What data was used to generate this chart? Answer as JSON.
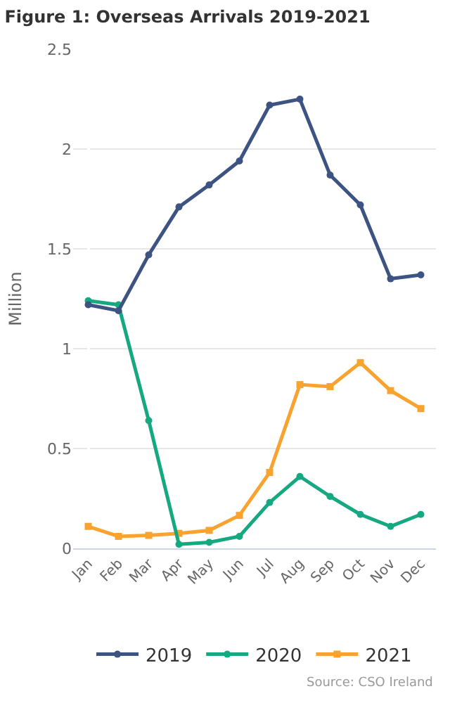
{
  "chart_data": {
    "type": "line",
    "title": "Figure 1: Overseas Arrivals 2019-2021",
    "ylabel": "Million",
    "categories": [
      "Jan",
      "Feb",
      "Mar",
      "Apr",
      "May",
      "Jun",
      "Jul",
      "Aug",
      "Sep",
      "Oct",
      "Nov",
      "Dec"
    ],
    "series": [
      {
        "name": "2019",
        "color": "#3d5382",
        "marker": "circle",
        "values": [
          1.22,
          1.19,
          1.47,
          1.71,
          1.82,
          1.94,
          2.22,
          2.25,
          1.87,
          1.72,
          1.35,
          1.37
        ]
      },
      {
        "name": "2020",
        "color": "#16a981",
        "marker": "circle",
        "values": [
          1.24,
          1.22,
          0.64,
          0.02,
          0.03,
          0.06,
          0.23,
          0.36,
          0.26,
          0.17,
          0.11,
          0.17
        ]
      },
      {
        "name": "2021",
        "color": "#f8a32f",
        "marker": "square",
        "values": [
          0.11,
          0.06,
          0.065,
          0.075,
          0.09,
          0.165,
          0.38,
          0.82,
          0.81,
          0.93,
          0.79,
          0.7
        ]
      }
    ],
    "ylim": [
      0,
      2.5
    ],
    "yticks": [
      0,
      0.5,
      1,
      1.5,
      2,
      2.5
    ],
    "grid": "y",
    "legend": "bottom",
    "annotations": [
      "Source: CSO Ireland"
    ]
  }
}
